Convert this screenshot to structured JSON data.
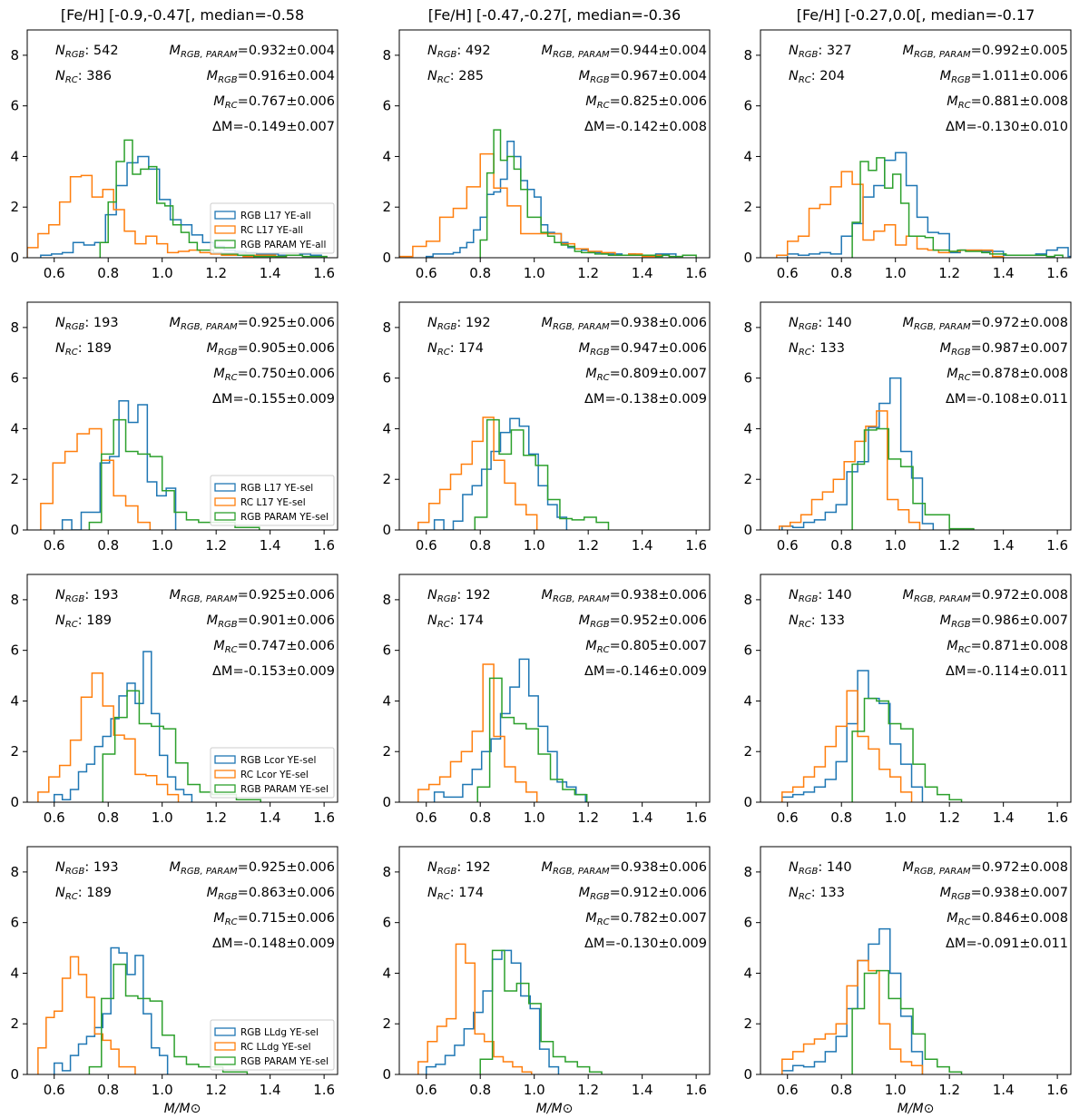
{
  "chart_data": {
    "type": "histogram-grid",
    "layout": "4 rows x 3 columns",
    "column_titles": [
      "[Fe/H] [-0.9,-0.47[, median=-0.58",
      "[Fe/H] [-0.47,-0.27[, median=-0.36",
      "[Fe/H] [-0.27,0.0[, median=-0.17"
    ],
    "xlabel": "M/M⊙",
    "xlim": [
      0.5,
      1.65
    ],
    "ylim": [
      0,
      9
    ],
    "xticks": [
      "0.6",
      "0.8",
      "1.0",
      "1.2",
      "1.4",
      "1.6"
    ],
    "yticks": [
      "0",
      "2",
      "4",
      "6",
      "8"
    ],
    "series_colors": {
      "RGB": "#1f77b4",
      "RC": "#ff7f0e",
      "PARAM": "#2ca02c"
    },
    "legends": [
      [
        "RGB L17 YE-all",
        "RC L17 YE-all",
        "RGB PARAM YE-all"
      ],
      [
        "RGB L17 YE-sel",
        "RC L17 YE-sel",
        "RGB PARAM YE-sel"
      ],
      [
        "RGB Lcor YE-sel",
        "RC Lcor YE-sel",
        "RGB PARAM YE-sel"
      ],
      [
        "RGB LLdg YE-sel",
        "RC LLdg YE-sel",
        "RGB PARAM YE-sel"
      ]
    ],
    "legend_placement": "lower-right (first column only)",
    "panels": [
      {
        "row": 0,
        "col": 0,
        "n_rgb": "542",
        "n_rc": "386",
        "m_param": "=0.932±0.004",
        "m_rgb": "=0.916±0.004",
        "m_rc": "=0.767±0.006",
        "dm": "ΔM=-0.149±0.007",
        "rgb": {
          "x0": 0.55,
          "w": 0.04,
          "h": [
            0.1,
            0.15,
            0.2,
            0.6,
            0.5,
            0.6,
            1.7,
            2.85,
            3.75,
            4.0,
            3.5,
            2.3,
            1.5,
            1.3,
            0.9,
            0.6,
            0.45,
            0.3,
            0.25,
            0.2,
            0.15,
            0.15,
            0.1,
            0.1,
            0.15,
            0.1
          ]
        },
        "rc": {
          "x0": 0.5,
          "w": 0.04,
          "h": [
            0.4,
            0.95,
            1.3,
            2.2,
            3.2,
            3.25,
            2.4,
            2.7,
            1.9,
            1.05,
            0.55,
            0.85,
            0.55,
            0.2,
            0.25,
            0.3,
            0.2,
            0.15,
            0.1,
            0.1,
            0.05,
            0.1,
            0.1,
            0.05
          ]
        },
        "param": {
          "x0": 0.77,
          "w": 0.03,
          "h": [
            0.6,
            2.2,
            3.8,
            4.65,
            3.3,
            3.5,
            3.6,
            2.15,
            2.05,
            1.3,
            1.0,
            0.6,
            0.3,
            0.3,
            0.2,
            0.15,
            0.15,
            0.1,
            0.1,
            0.05,
            0.05,
            0.05,
            0.05,
            0.1,
            0.1,
            0.05,
            0.05,
            0.05
          ]
        }
      },
      {
        "row": 0,
        "col": 1,
        "n_rgb": "492",
        "n_rc": "285",
        "m_param": "=0.944±0.004",
        "m_rgb": "=0.967±0.004",
        "m_rc": "=0.825±0.006",
        "dm": "ΔM=-0.142±0.008",
        "rgb": {
          "x0": 0.6,
          "w": 0.025,
          "h": [
            0.05,
            0.15,
            0.15,
            0.15,
            0.2,
            0.4,
            0.6,
            1.1,
            1.6,
            2.5,
            2.6,
            3.1,
            4.6,
            4.0,
            3.05,
            2.7,
            2.4,
            1.3,
            1.0,
            0.95,
            0.6,
            0.4,
            0.35,
            0.3,
            0.2,
            0.2,
            0.15,
            0.15,
            0.15,
            0.1,
            0.15,
            0.1,
            0.1,
            0.1,
            0.15,
            0.15,
            0.15
          ]
        },
        "rc": {
          "x0": 0.5,
          "w": 0.05,
          "h": [
            0.05,
            0.45,
            0.65,
            1.6,
            1.95,
            2.8,
            4.1,
            2.75,
            2.05,
            0.95,
            0.95,
            0.95,
            0.55,
            0.35,
            0.25,
            0.2,
            0.1,
            0.15,
            0.05,
            0.1
          ]
        },
        "param": {
          "x0": 0.8,
          "w": 0.025,
          "h": [
            0.7,
            3.35,
            5.05,
            3.85,
            4.0,
            3.5,
            2.7,
            1.6,
            1.6,
            1.0,
            0.85,
            0.6,
            0.5,
            0.45,
            0.25,
            0.2,
            0.2,
            0.15,
            0.15,
            0.1,
            0.1,
            0.1,
            0.1,
            0.1,
            0.1,
            0.1,
            0.05,
            0.1,
            0.05,
            0.05,
            0.1,
            0.1
          ]
        }
      },
      {
        "row": 0,
        "col": 2,
        "n_rgb": "327",
        "n_rc": "204",
        "m_param": "=0.992±0.005",
        "m_rgb": "=1.011±0.006",
        "m_rc": "=0.881±0.008",
        "dm": "ΔM=-0.130±0.010",
        "rgb": {
          "x0": 0.6,
          "w": 0.04,
          "h": [
            0.15,
            0.1,
            0.15,
            0.2,
            0.15,
            0.85,
            1.35,
            2.4,
            2.85,
            3.85,
            4.15,
            2.85,
            1.6,
            1.0,
            0.95,
            0.2,
            0.3,
            0.3,
            0.25,
            0.25,
            0.1,
            0.1,
            0.1,
            0.15,
            0.3,
            0.4,
            0.05
          ]
        },
        "rc": {
          "x0": 0.56,
          "w": 0.04,
          "h": [
            0.1,
            0.65,
            0.85,
            1.95,
            2.1,
            2.8,
            3.4,
            2.9,
            0.7,
            1.05,
            1.3,
            0.5,
            0.85,
            0.35,
            0.3,
            0.2,
            0.25,
            0.3,
            0.3,
            0.3,
            0.05
          ]
        },
        "param": {
          "x0": 0.84,
          "w": 0.03,
          "h": [
            1.4,
            3.8,
            3.45,
            3.95,
            2.75,
            3.3,
            2.15,
            0.85,
            0.85,
            0.8,
            0.3,
            0.3,
            0.25,
            0.3,
            0.25,
            0.25,
            0.2,
            0.15,
            0.15,
            0.1,
            0.1,
            0.1,
            0.1,
            0.1,
            0.05,
            0.1
          ]
        }
      },
      {
        "row": 1,
        "col": 0,
        "n_rgb": "193",
        "n_rc": "189",
        "m_param": "=0.925±0.006",
        "m_rgb": "=0.905±0.006",
        "m_rc": "=0.750±0.006",
        "dm": "ΔM=-0.155±0.009",
        "rgb": {
          "x0": 0.63,
          "w": 0.035,
          "h": [
            0.4,
            0.0,
            0.7,
            0.7,
            2.65,
            2.9,
            5.1,
            4.25,
            4.95,
            1.9,
            1.35,
            1.65
          ]
        },
        "rc": {
          "x0": 0.55,
          "w": 0.045,
          "h": [
            1.05,
            2.65,
            3.1,
            3.8,
            4.0,
            2.75,
            1.35,
            0.95,
            0.3
          ]
        },
        "param": {
          "x0": 0.73,
          "w": 0.045,
          "h": [
            0.3,
            3.0,
            4.35,
            3.1,
            3.0,
            2.9,
            1.55,
            0.7,
            0.4,
            0.3,
            0.3,
            0.3,
            0.1,
            0.1
          ]
        }
      },
      {
        "row": 1,
        "col": 1,
        "n_rgb": "192",
        "n_rc": "174",
        "m_param": "=0.938±0.006",
        "m_rgb": "=0.947±0.006",
        "m_rc": "=0.809±0.007",
        "dm": "ΔM=-0.138±0.009",
        "rgb": {
          "x0": 0.63,
          "w": 0.035,
          "h": [
            0.4,
            0.0,
            0.35,
            1.4,
            1.75,
            2.4,
            3.1,
            3.85,
            4.4,
            4.1,
            3.0,
            1.75,
            1.0,
            0.5
          ]
        },
        "rc": {
          "x0": 0.57,
          "w": 0.04,
          "h": [
            0.3,
            1.05,
            1.6,
            2.2,
            2.6,
            3.5,
            4.45,
            2.75,
            1.85,
            1.0,
            0.6
          ]
        },
        "param": {
          "x0": 0.78,
          "w": 0.045,
          "h": [
            0.5,
            4.35,
            3.0,
            3.95,
            2.95,
            2.55,
            1.2,
            0.45,
            0.4,
            0.5,
            0.3
          ]
        }
      },
      {
        "row": 1,
        "col": 2,
        "n_rgb": "140",
        "n_rc": "133",
        "m_param": "=0.972±0.008",
        "m_rgb": "=0.987±0.007",
        "m_rc": "=0.878±0.008",
        "dm": "ΔM=-0.108±0.011",
        "rgb": {
          "x0": 0.58,
          "w": 0.04,
          "h": [
            0.15,
            0.1,
            0.3,
            0.4,
            0.7,
            1.0,
            2.3,
            2.7,
            4.05,
            5.0,
            6.0,
            3.1,
            2.05,
            0.25
          ]
        },
        "rc": {
          "x0": 0.57,
          "w": 0.04,
          "h": [
            0.15,
            0.3,
            0.6,
            1.2,
            1.5,
            2.0,
            2.7,
            3.5,
            4.1,
            4.7,
            1.2,
            0.8,
            0.3
          ]
        },
        "param": {
          "x0": 0.84,
          "w": 0.045,
          "h": [
            2.6,
            3.95,
            4.0,
            2.8,
            2.5,
            1.05,
            0.6,
            0.6,
            0.05,
            0.05
          ]
        }
      },
      {
        "row": 2,
        "col": 0,
        "n_rgb": "193",
        "n_rc": "189",
        "m_param": "=0.925±0.006",
        "m_rgb": "=0.901±0.006",
        "m_rc": "=0.747±0.006",
        "dm": "ΔM=-0.153±0.009",
        "rgb": {
          "x0": 0.6,
          "w": 0.03,
          "h": [
            0.3,
            0.1,
            0.5,
            1.2,
            1.5,
            2.2,
            2.6,
            3.3,
            4.2,
            4.7,
            3.9,
            5.95,
            3.5,
            1.85,
            1.0,
            0.5,
            0.3
          ]
        },
        "rc": {
          "x0": 0.54,
          "w": 0.04,
          "h": [
            0.4,
            1.0,
            1.45,
            2.45,
            4.15,
            5.1,
            3.8,
            2.65,
            2.5,
            1.1,
            1.05,
            0.7,
            0.3
          ]
        },
        "param": {
          "x0": 0.78,
          "w": 0.045,
          "h": [
            1.9,
            3.35,
            4.4,
            3.1,
            3.0,
            2.9,
            1.55,
            0.7,
            0.4,
            0.3,
            0.3,
            0.1,
            0.1
          ]
        }
      },
      {
        "row": 2,
        "col": 1,
        "n_rgb": "192",
        "n_rc": "174",
        "m_param": "=0.938±0.006",
        "m_rgb": "=0.952±0.006",
        "m_rc": "=0.805±0.007",
        "dm": "ΔM=-0.146±0.009",
        "rgb": {
          "x0": 0.63,
          "w": 0.035,
          "h": [
            0.4,
            0.2,
            0.2,
            0.7,
            1.3,
            2.0,
            2.5,
            3.5,
            4.55,
            5.65,
            4.2,
            3.0,
            2.0,
            0.8,
            0.6,
            0.3
          ]
        },
        "rc": {
          "x0": 0.57,
          "w": 0.04,
          "h": [
            0.5,
            0.7,
            1.0,
            1.6,
            2.0,
            2.8,
            5.45,
            2.6,
            1.4,
            0.8,
            0.4
          ]
        },
        "param": {
          "x0": 0.79,
          "w": 0.045,
          "h": [
            0.6,
            4.9,
            3.35,
            3.1,
            2.9,
            1.9,
            0.9,
            0.5,
            0.3
          ]
        }
      },
      {
        "row": 2,
        "col": 2,
        "n_rgb": "140",
        "n_rc": "133",
        "m_param": "=0.972±0.008",
        "m_rgb": "=0.986±0.007",
        "m_rc": "=0.871±0.008",
        "dm": "ΔM=-0.114±0.011",
        "rgb": {
          "x0": 0.58,
          "w": 0.04,
          "h": [
            0.2,
            0.3,
            0.4,
            0.6,
            0.9,
            1.6,
            3.1,
            5.2,
            4.1,
            3.9,
            2.3,
            1.5,
            0.6
          ]
        },
        "rc": {
          "x0": 0.58,
          "w": 0.04,
          "h": [
            0.4,
            0.6,
            1.0,
            1.4,
            2.2,
            3.0,
            4.4,
            2.6,
            2.1,
            1.3,
            1.0,
            0.4
          ]
        },
        "param": {
          "x0": 0.84,
          "w": 0.045,
          "h": [
            2.8,
            4.1,
            4.0,
            3.1,
            2.9,
            1.5,
            0.6,
            0.3,
            0.1
          ]
        }
      },
      {
        "row": 3,
        "col": 0,
        "n_rgb": "193",
        "n_rc": "189",
        "m_param": "=0.925±0.006",
        "m_rgb": "=0.863±0.006",
        "m_rc": "=0.715±0.006",
        "dm": "ΔM=-0.148±0.009",
        "rgb": {
          "x0": 0.6,
          "w": 0.03,
          "h": [
            0.45,
            0.15,
            0.75,
            1.2,
            1.5,
            1.85,
            2.4,
            5.0,
            4.8,
            3.95,
            4.7,
            2.4,
            1.05,
            0.75
          ]
        },
        "rc": {
          "x0": 0.54,
          "w": 0.03,
          "h": [
            1.05,
            2.25,
            2.5,
            3.8,
            4.65,
            3.95,
            3.05,
            1.6,
            1.35,
            1.0,
            0.3,
            0.3
          ]
        },
        "param": {
          "x0": 0.73,
          "w": 0.045,
          "h": [
            0.3,
            3.0,
            4.35,
            3.1,
            3.0,
            2.9,
            1.55,
            0.7,
            0.4,
            0.3,
            0.3,
            0.1,
            0.1
          ]
        }
      },
      {
        "row": 3,
        "col": 1,
        "n_rgb": "192",
        "n_rc": "174",
        "m_param": "=0.938±0.006",
        "m_rgb": "=0.912±0.006",
        "m_rc": "=0.782±0.007",
        "dm": "ΔM=-0.130±0.009",
        "rgb": {
          "x0": 0.6,
          "w": 0.035,
          "h": [
            0.3,
            0.4,
            0.75,
            1.15,
            1.8,
            2.45,
            3.3,
            4.55,
            4.9,
            4.4,
            3.1,
            2.6,
            1.0,
            0.3
          ]
        },
        "rc": {
          "x0": 0.57,
          "w": 0.035,
          "h": [
            0.5,
            1.3,
            1.9,
            2.2,
            5.15,
            4.4,
            1.6,
            1.3,
            0.7,
            0.5,
            0.3,
            0.1
          ]
        },
        "param": {
          "x0": 0.8,
          "w": 0.045,
          "h": [
            0.6,
            4.9,
            3.3,
            3.6,
            2.8,
            1.3,
            0.7,
            0.5,
            0.3,
            0.1
          ]
        }
      },
      {
        "row": 3,
        "col": 2,
        "n_rgb": "140",
        "n_rc": "133",
        "m_param": "=0.972±0.008",
        "m_rgb": "=0.938±0.007",
        "m_rc": "=0.846±0.008",
        "dm": "ΔM=-0.091±0.011",
        "rgb": {
          "x0": 0.58,
          "w": 0.04,
          "h": [
            0.15,
            0.35,
            0.3,
            0.5,
            0.9,
            1.5,
            2.6,
            4.5,
            5.15,
            5.75,
            4.0,
            2.3,
            0.9
          ]
        },
        "rc": {
          "x0": 0.58,
          "w": 0.04,
          "h": [
            0.6,
            0.9,
            1.2,
            1.4,
            1.6,
            2.0,
            3.5,
            4.5,
            4.1,
            2.0,
            1.0,
            0.5,
            0.35
          ]
        },
        "param": {
          "x0": 0.84,
          "w": 0.045,
          "h": [
            2.6,
            4.0,
            4.1,
            3.0,
            2.6,
            1.6,
            0.6,
            0.3,
            0.1
          ]
        }
      }
    ]
  }
}
